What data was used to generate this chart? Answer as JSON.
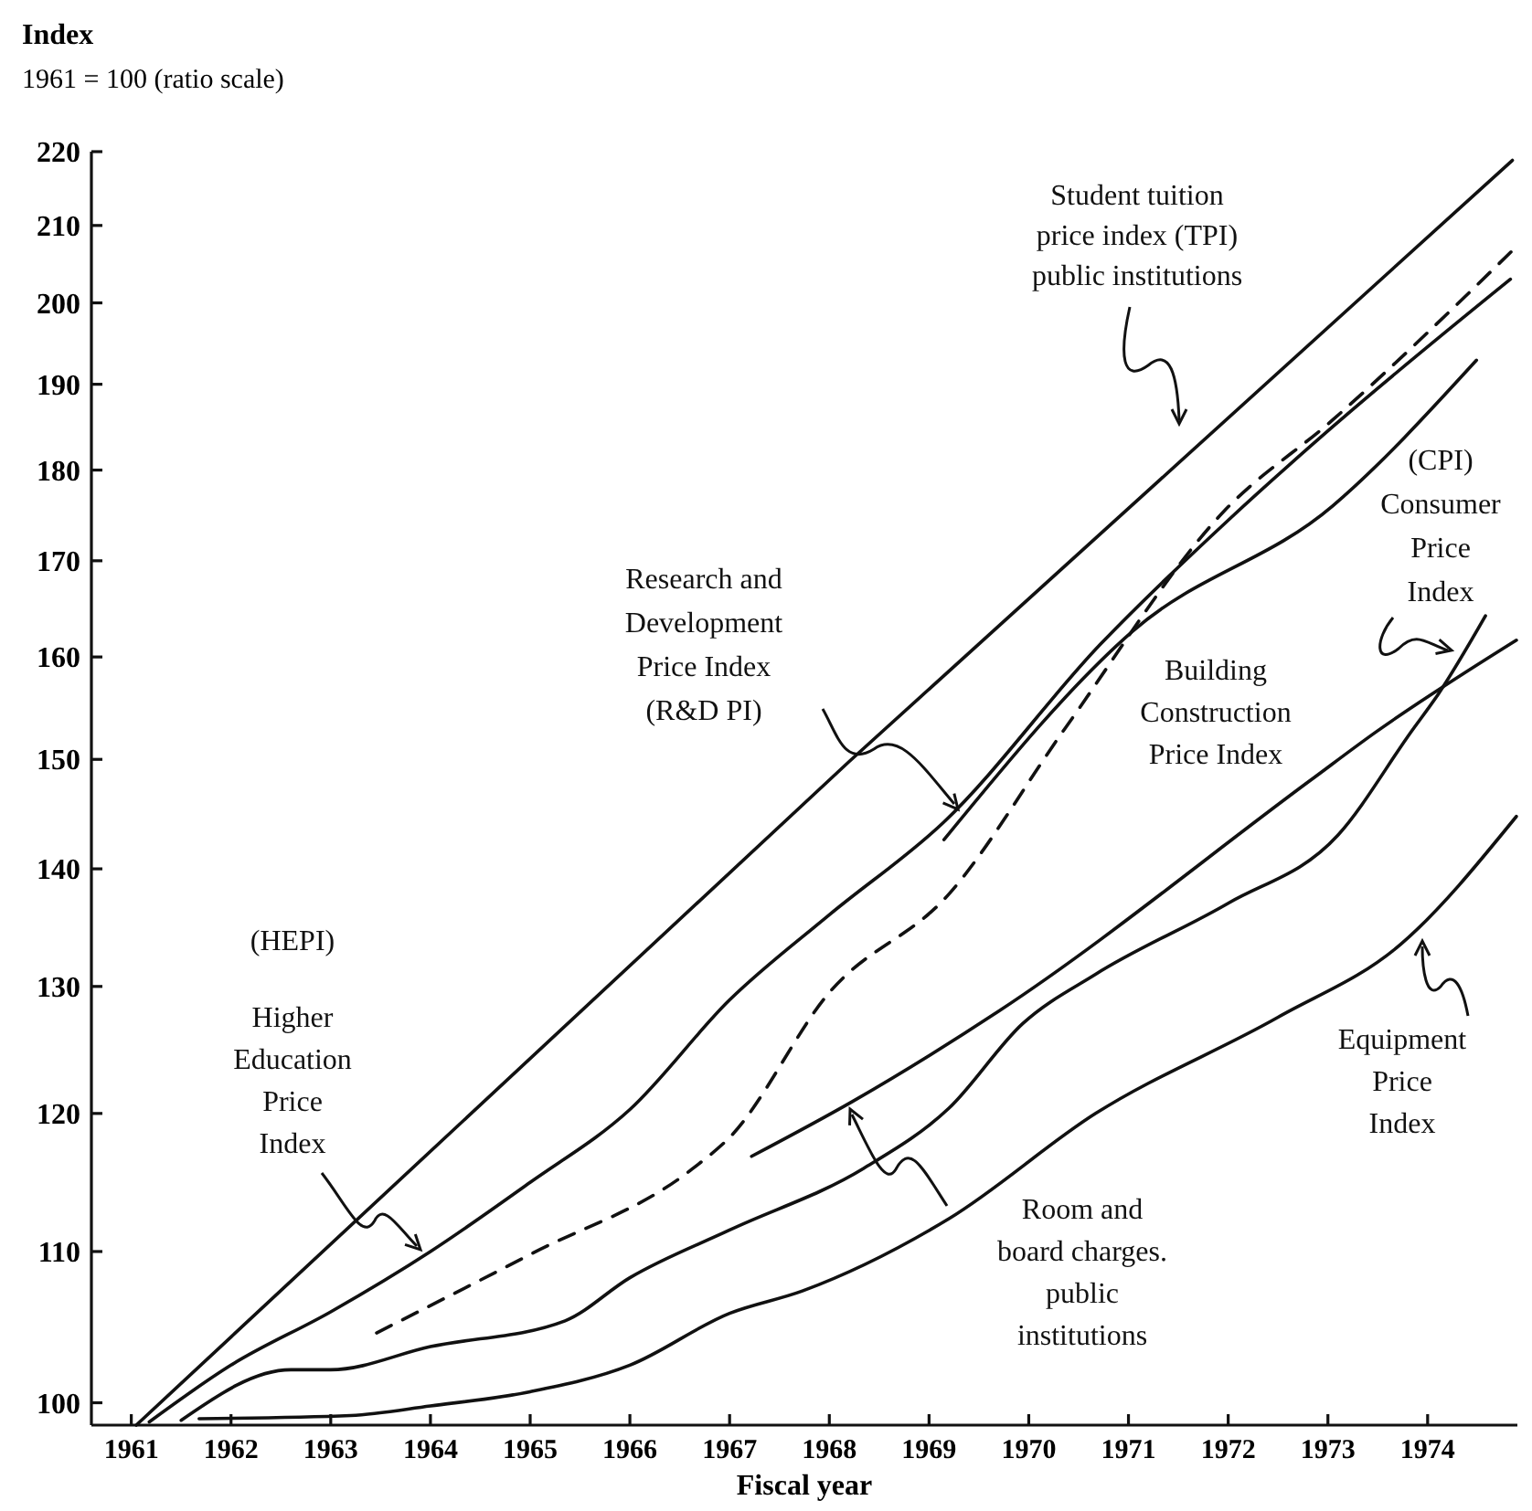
{
  "chart_data": {
    "type": "line",
    "ylabel": "Index",
    "subtitle": "1961 = 100 (ratio scale)",
    "xlabel": "Fiscal year",
    "log": true,
    "grid": false,
    "marker": "none",
    "xlim": [
      1960.6,
      1974.9
    ],
    "xticks": [
      1961,
      1962,
      1963,
      1964,
      1965,
      1966,
      1967,
      1968,
      1969,
      1970,
      1971,
      1972,
      1973,
      1974
    ],
    "ylim": [
      98.6,
      220
    ],
    "yticks": [
      100,
      110,
      120,
      130,
      140,
      150,
      160,
      170,
      180,
      190,
      200,
      210,
      220
    ],
    "series": [
      {
        "color": "#111111",
        "line_style": "solid",
        "x": [
          1961.05,
          1968.2,
          1974.85
        ],
        "values": [
          98.6,
          149.8,
          218.8
        ]
      },
      {
        "color": "#111111",
        "line_style": "solid",
        "x": [
          1961.18,
          1962,
          1963,
          1964,
          1965,
          1966,
          1967,
          1968,
          1969.15,
          1970.72,
          1972,
          1973.05,
          1974.83
        ],
        "values": [
          98.8,
          102.4,
          105.9,
          110,
          114.9,
          120.3,
          128.9,
          136,
          144.2,
          161.3,
          174.4,
          185,
          203
        ]
      },
      {
        "color": "#111111",
        "line_style": "dashed",
        "x": [
          1963.46,
          1965,
          1966.63,
          1967,
          1968,
          1969.2,
          1970.36,
          1971.95,
          1973.05,
          1974.85
        ],
        "values": [
          104.5,
          109.8,
          115.9,
          118.2,
          129.5,
          137.8,
          152.9,
          175.3,
          185.8,
          206.7
        ]
      },
      {
        "color": "#111111",
        "line_style": "solid",
        "x": [
          1969.15,
          1971.04,
          1973.05,
          1974.49
        ],
        "values": [
          142.6,
          162.6,
          176,
          192.9
        ]
      },
      {
        "color": "#111111",
        "line_style": "solid",
        "x": [
          1967.22,
          1968.23,
          1969.7,
          1972.82,
          1973.48,
          1974.89
        ],
        "values": [
          116.8,
          120.9,
          128,
          148,
          152.6,
          161.7
        ]
      },
      {
        "color": "#111111",
        "line_style": "solid",
        "x": [
          1961.5,
          1962.6,
          1963,
          1964,
          1965.35,
          1966,
          1967,
          1968.34,
          1969.2,
          1969.94,
          1970.67,
          1972,
          1973.1,
          1973.84,
          1974.1,
          1974.58
        ],
        "values": [
          98.9,
          102.1,
          102.1,
          103.6,
          105.3,
          108.2,
          111.5,
          115.9,
          120.4,
          127,
          131,
          137,
          143,
          152.7,
          156.2,
          164.2
        ]
      },
      {
        "color": "#111111",
        "line_style": "solid",
        "x": [
          1961.68,
          1963.2,
          1964,
          1965,
          1966,
          1967,
          1967.73,
          1969.2,
          1970.67,
          1972.5,
          1973.73,
          1974.89
        ],
        "values": [
          99,
          99.2,
          99.8,
          100.7,
          102.4,
          105.8,
          107.3,
          112.3,
          120,
          127.5,
          133.5,
          144.7
        ]
      }
    ],
    "annotations": [
      "Student tuition\nprice index (TPI)\npublic institutions",
      "(CPI)\nConsumer\nPrice\nIndex",
      "Research and\nDevelopment\nPrice Index\n(R&D PI)",
      "Building\nConstruction\nPrice Index",
      "(HEPI)",
      "Higher\nEducation\nPrice\nIndex",
      "Room and\nboard charges.\npublic\ninstitutions",
      "Equipment\nPrice\nIndex"
    ]
  }
}
